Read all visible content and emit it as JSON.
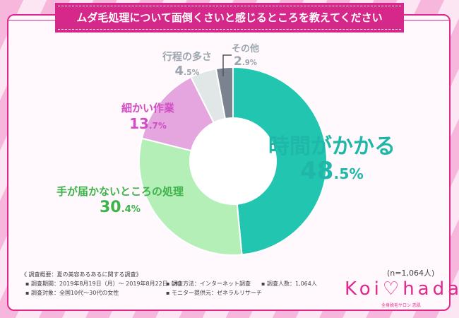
{
  "title": "ムダ毛処理について面倒くさいと感じるところを教えてください",
  "chart_data": {
    "type": "pie",
    "donut": true,
    "title": "ムダ毛処理について面倒くさいと感じるところを教えてください",
    "categories": [
      "時間がかかる",
      "手が届かないところの処理",
      "細かい作業",
      "行程の多さ",
      "その他"
    ],
    "values": [
      48.5,
      30.4,
      13.7,
      4.5,
      2.9
    ],
    "colors": [
      "#22c6b0",
      "#b5efb8",
      "#e5a6e0",
      "#e1e7e7",
      "#7b8391"
    ],
    "label_colors": [
      "#1fb8a8",
      "#3db34a",
      "#d04fc4",
      "#9aa5ae",
      "#9aa5ae"
    ],
    "start": "top",
    "direction": "clockwise"
  },
  "sample": "(n=1,064人)",
  "survey": {
    "heading": "《 調査概要：夏の美容あるあるに関する調査》",
    "period": "▪ 調査期間：2019年8月19日（月）～ 2019年8月22日（木）",
    "method": "▪ 調査方法：インターネット調査",
    "count": "▪ 調査人数：1,064人",
    "target": "▪ 調査対象：全国10代～30代の女性",
    "provider": "▪ モニター提供元：ゼネラルリサーチ"
  },
  "logo": {
    "text": "Koi♡hada",
    "sub": "全身脱毛サロン 恋肌"
  }
}
